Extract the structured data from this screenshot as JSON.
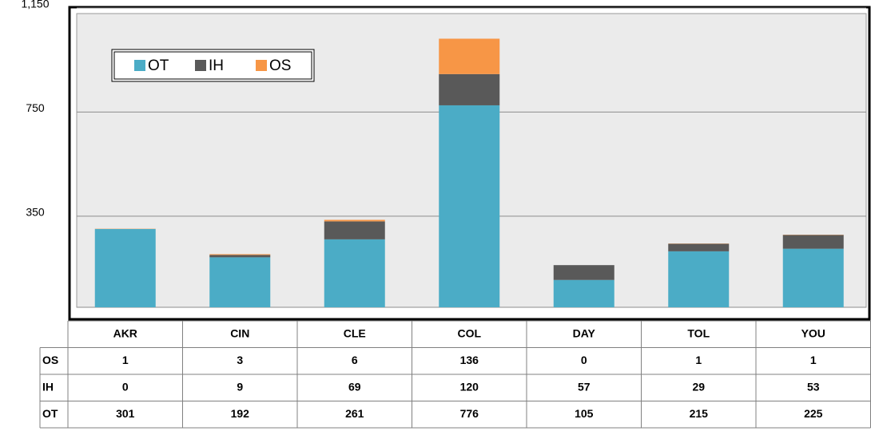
{
  "chart_data": {
    "type": "stacked_bar",
    "categories": [
      "AKR",
      "CIN",
      "CLE",
      "COL",
      "DAY",
      "TOL",
      "YOU"
    ],
    "series": [
      {
        "name": "OT",
        "color": "#4bacc6",
        "values": [
          301,
          192,
          261,
          776,
          105,
          215,
          225
        ]
      },
      {
        "name": "IH",
        "color": "#595959",
        "values": [
          0,
          9,
          69,
          120,
          57,
          29,
          53
        ]
      },
      {
        "name": "OS",
        "color": "#f79646",
        "values": [
          1,
          3,
          6,
          136,
          0,
          1,
          1
        ]
      }
    ],
    "ylim": [
      0,
      1150
    ],
    "yticks": [
      350,
      750,
      {
        "value": 1150,
        "label": "1,150"
      }
    ],
    "grid": true,
    "legend": "top-left"
  }
}
